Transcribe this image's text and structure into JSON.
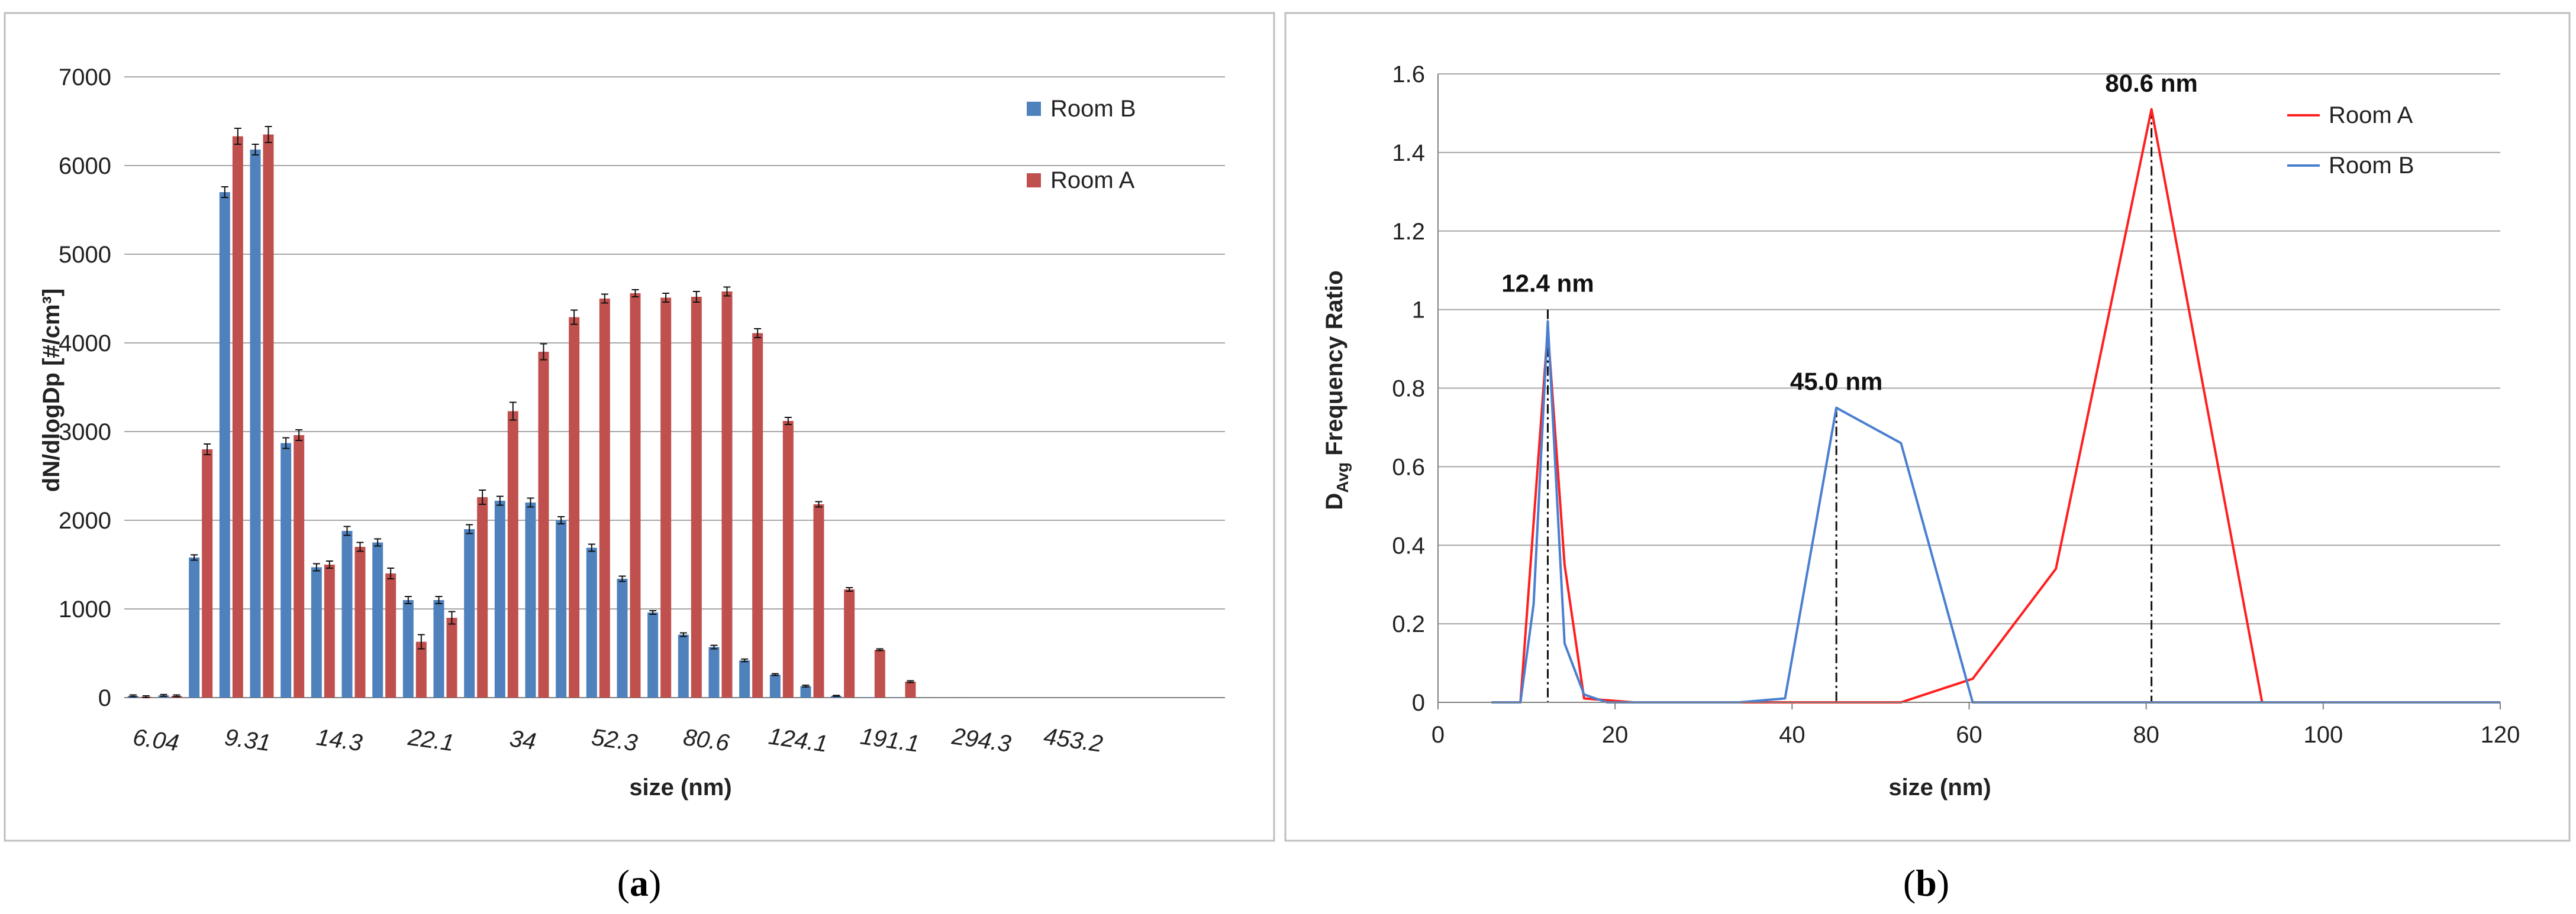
{
  "panels": {
    "a": {
      "open": "(",
      "letter": "a",
      "close": ")"
    },
    "b": {
      "open": "(",
      "letter": "b",
      "close": ")"
    }
  },
  "colors": {
    "room_a": "#c0504d",
    "room_b": "#4f81bd",
    "line_a": "#ff1f1f",
    "line_b": "#4a7fd0",
    "grid": "#a6a6a6",
    "frame": "#bfbfbf"
  },
  "chart_data": [
    {
      "type": "bar",
      "xlabel": "size (nm)",
      "ylabel": "dN/dlogDp [#/cm³]",
      "ylim": [
        0,
        7000
      ],
      "yticks": [
        "0",
        "1000",
        "2000",
        "3000",
        "4000",
        "5000",
        "6000",
        "7000"
      ],
      "tick_labels": [
        "6.04",
        "9.31",
        "14.3",
        "22.1",
        "34",
        "52.3",
        "80.6",
        "124.1",
        "191.1",
        "294.3",
        "453.2"
      ],
      "grid": true,
      "legend_position": "top-right",
      "series": [
        {
          "name": "Room B",
          "values": [
            20,
            25,
            1580,
            5700,
            6180,
            2870,
            1470,
            1880,
            1750,
            1100,
            1100,
            1900,
            2220,
            2200,
            2000,
            1690,
            1340,
            960,
            710,
            570,
            420,
            260,
            130,
            20,
            5,
            3,
            2,
            2,
            0,
            0,
            0,
            0,
            0,
            0,
            0,
            0
          ]
        },
        {
          "name": "Room A",
          "values": [
            10,
            20,
            2800,
            6330,
            6350,
            2960,
            1500,
            1700,
            1400,
            630,
            900,
            2260,
            3230,
            3900,
            4290,
            4500,
            4560,
            4510,
            4520,
            4580,
            4110,
            3120,
            2180,
            1220,
            540,
            180,
            0,
            0,
            0,
            0,
            0,
            0,
            0,
            0,
            0,
            0
          ]
        }
      ],
      "errors": {
        "Room B": [
          10,
          10,
          30,
          60,
          60,
          60,
          40,
          50,
          40,
          40,
          40,
          50,
          50,
          50,
          40,
          40,
          30,
          20,
          20,
          20,
          15,
          10,
          10,
          5,
          0,
          0,
          0,
          0,
          0,
          0,
          0,
          0,
          0,
          0,
          0,
          0
        ],
        "Room A": [
          10,
          10,
          60,
          90,
          90,
          60,
          40,
          50,
          60,
          80,
          70,
          80,
          100,
          90,
          80,
          50,
          40,
          50,
          60,
          50,
          50,
          40,
          30,
          20,
          10,
          10,
          0,
          0,
          0,
          0,
          0,
          0,
          0,
          0,
          0,
          0
        ]
      }
    },
    {
      "type": "line",
      "xlabel": "size (nm)",
      "ylabel_main": "D",
      "ylabel_sub": "Avg",
      "ylabel_rest": " Frequency Ratio",
      "xlim": [
        0,
        120
      ],
      "ylim": [
        0,
        1.6
      ],
      "xticks": [
        "0",
        "20",
        "40",
        "60",
        "80",
        "100",
        "120"
      ],
      "yticks": [
        "0",
        "0.2",
        "0.4",
        "0.6",
        "0.8",
        "1",
        "1.2",
        "1.4",
        "1.6"
      ],
      "grid": true,
      "legend_position": "top-right",
      "series": [
        {
          "name": "Room A",
          "x": [
            6.04,
            9.31,
            12.4,
            14.3,
            16.5,
            22.1,
            34,
            39.2,
            45.0,
            52.3,
            60.4,
            69.8,
            80.6,
            93.1,
            107.5,
            120
          ],
          "y": [
            0,
            0,
            0.95,
            0.35,
            0.01,
            0,
            0,
            0,
            0,
            0,
            0.06,
            0.34,
            1.51,
            0,
            0,
            0
          ]
        },
        {
          "name": "Room B",
          "x": [
            6.04,
            9.31,
            10.8,
            12.4,
            14.3,
            16.5,
            19.1,
            34,
            39.2,
            45.0,
            52.3,
            60.4,
            69.8,
            80.6,
            93.1,
            107.5,
            120
          ],
          "y": [
            0,
            0,
            0.25,
            0.97,
            0.15,
            0.02,
            0,
            0,
            0.01,
            0.75,
            0.66,
            0,
            0,
            0,
            0,
            0,
            0
          ]
        }
      ],
      "annotations": [
        {
          "text": "12.4 nm",
          "x": 12.4,
          "y": 1.0
        },
        {
          "text": "45.0 nm",
          "x": 45.0,
          "y": 0.75
        },
        {
          "text": "80.6 nm",
          "x": 80.6,
          "y": 1.51
        }
      ]
    }
  ]
}
